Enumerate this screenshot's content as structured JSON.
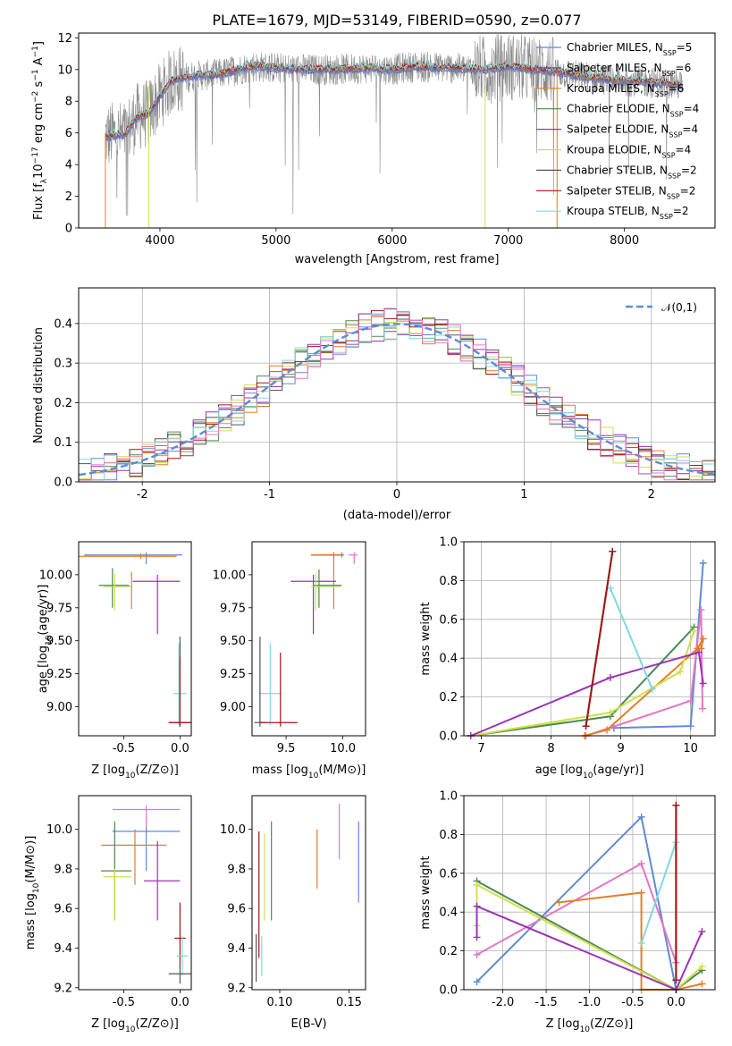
{
  "figure": {
    "title": "PLATE=1679, MJD=53149, FIBERID=0590, z=0.077"
  },
  "series_styles": [
    {
      "name": "Chabrier MILES",
      "nssp": "5",
      "color": "#5f8ad6"
    },
    {
      "name": "Salpeter MILES",
      "nssp": "6",
      "color": "#6e4fa0"
    },
    {
      "name": "Kroupa MILES",
      "nssp": "6",
      "color": "#e67e22"
    },
    {
      "name": "Chabrier ELODIE",
      "nssp": "4",
      "color": "#4a8a52"
    },
    {
      "name": "Salpeter ELODIE",
      "nssp": "4",
      "color": "#9b32b4"
    },
    {
      "name": "Kroupa ELODIE",
      "nssp": "4",
      "color": "#cfe04a"
    },
    {
      "name": "Chabrier STELIB",
      "nssp": "2",
      "color": "#555555"
    },
    {
      "name": "Salpeter STELIB",
      "nssp": "2",
      "color": "#a31515"
    },
    {
      "name": "Kroupa STELIB",
      "nssp": "2",
      "color": "#80d8e0"
    }
  ],
  "spectrum_extra_colors": {
    "observed": "#8a8a8a",
    "pink": "#e377c2"
  },
  "chart_data": [
    {
      "id": "spectrum",
      "type": "line",
      "xlabel": "wavelength [Angstrom, rest frame]",
      "ylabel": "Flux [f_λ10^-17 erg cm^-2 s^-1 A^-1]",
      "xlim": [
        3300,
        8780
      ],
      "ylim": [
        0,
        12.3
      ],
      "xticks": [
        4000,
        5000,
        6000,
        7000,
        8000
      ],
      "yticks": [
        0,
        2,
        4,
        6,
        8,
        10,
        12
      ],
      "grid": false,
      "legend": "right",
      "continuum": {
        "x": [
          3530,
          3700,
          3800,
          3900,
          4000,
          4100,
          4300,
          4500,
          4800,
          5000,
          5200,
          5500,
          5800,
          6000,
          6200,
          6500,
          6800,
          7000,
          7200,
          7400,
          7600,
          7800,
          8000,
          8200,
          8400,
          8500
        ],
        "y": [
          5.8,
          5.9,
          7.0,
          7.2,
          8.3,
          9.3,
          9.6,
          9.7,
          10.2,
          10.1,
          10.0,
          10.0,
          10.1,
          10.0,
          10.2,
          10.1,
          10.0,
          10.2,
          10.0,
          9.9,
          9.6,
          9.4,
          9.3,
          9.2,
          9.1,
          9.0
        ]
      }
    },
    {
      "id": "residual_hist",
      "type": "histogram",
      "xlabel": "(data-model)/error",
      "ylabel": "Normed distribution",
      "xlim": [
        -2.5,
        2.5
      ],
      "ylim": [
        0,
        0.49
      ],
      "xticks": [
        -2,
        -1,
        0,
        1,
        2
      ],
      "yticks": [
        0.0,
        0.1,
        0.2,
        0.3,
        0.4
      ],
      "grid": true,
      "legend_label": "𝒩(0,1)",
      "legend": "top-right",
      "bin_width": 0.1,
      "gaussian": {
        "mean": 0,
        "sigma": 1
      }
    },
    {
      "id": "age_vs_Z",
      "type": "errorbar",
      "xlabel": "Z [log10(Z/Z⊙)]",
      "ylabel": "age  [log10(age/yr)]",
      "xlim": [
        -0.9,
        0.1
      ],
      "ylim": [
        8.78,
        10.25
      ],
      "xticks": [
        -0.5,
        0.0
      ],
      "yticks": [
        9.0,
        9.25,
        9.5,
        9.75,
        10.0
      ],
      "ytick_labels": [
        "9.00",
        "9.25",
        "9.50",
        "9.75",
        "10.00"
      ],
      "points": [
        {
          "series": 0,
          "x": -0.3,
          "xerr": [
            0.55,
            0.32
          ],
          "y": 10.15,
          "yerr": [
            0.07,
            0.02
          ]
        },
        {
          "series": 2,
          "x": -0.35,
          "xerr": [
            0.55,
            0.32
          ],
          "y": 10.14,
          "yerr": [
            0.02,
            0.02
          ]
        },
        {
          "series": 4,
          "x": -0.2,
          "xerr": [
            0.22,
            0.2
          ],
          "y": 9.95,
          "yerr": [
            0.4,
            0.05
          ]
        },
        {
          "series": 3,
          "x": -0.6,
          "xerr": [
            0.12,
            0.15
          ],
          "y": 9.92,
          "yerr": [
            0.17,
            0.13
          ]
        },
        {
          "series": 5,
          "x": -0.58,
          "xerr": [
            0.1,
            0.15
          ],
          "y": 9.91,
          "yerr": [
            0.18,
            0.1
          ]
        },
        {
          "series": 2,
          "x": -0.43,
          "xerr": [
            0.0,
            0.0
          ],
          "y": 9.92,
          "yerr": [
            0.18,
            0.1
          ]
        },
        {
          "series": 8,
          "x": -0.01,
          "xerr": [
            0.05,
            0.07
          ],
          "y": 9.1,
          "yerr": [
            0.24,
            0.38
          ]
        },
        {
          "series": 6,
          "x": 0.0,
          "xerr": [
            0.1,
            0.1
          ],
          "y": 8.88,
          "yerr": [
            0.03,
            0.65
          ]
        },
        {
          "series": 7,
          "x": 0.0,
          "xerr": [
            0.1,
            0.1
          ],
          "y": 8.88,
          "yerr": [
            0.03,
            0.5
          ]
        }
      ]
    },
    {
      "id": "age_vs_mass",
      "type": "errorbar",
      "xlabel": "mass [log10(M/M⊙)]",
      "ylabel": "",
      "xlim": [
        9.2,
        10.2
      ],
      "ylim": [
        8.78,
        10.25
      ],
      "xticks": [
        9.5,
        10.0
      ],
      "yticks": [
        9.0,
        9.25,
        9.5,
        9.75,
        10.0
      ],
      "ytick_labels": [
        "9.00",
        "9.25",
        "9.50",
        "9.75",
        "10.00"
      ],
      "points": [
        {
          "series": 0,
          "x": 9.99,
          "xerr": [
            0.2,
            0.02
          ],
          "y": 10.15,
          "yerr": [
            0.02,
            0.02
          ]
        },
        {
          "series": 7,
          "x": 9.92,
          "xerr": [
            0.2,
            0.08
          ],
          "y": 10.15,
          "yerr": [
            0.02,
            0.02
          ]
        },
        {
          "series": 2,
          "x": 9.92,
          "xerr": [
            0.2,
            0.08
          ],
          "y": 10.15,
          "yerr": [
            0.41,
            0.02
          ]
        },
        {
          "series": 9,
          "x": 10.1,
          "xerr": [
            0.05,
            0.03
          ],
          "y": 10.15,
          "yerr": [
            0.07,
            0.02
          ]
        },
        {
          "series": 4,
          "x": 9.74,
          "xerr": [
            0.2,
            0.2
          ],
          "y": 9.95,
          "yerr": [
            0.4,
            0.05
          ]
        },
        {
          "series": 3,
          "x": 9.79,
          "xerr": [
            0.05,
            0.2
          ],
          "y": 9.92,
          "yerr": [
            0.17,
            0.12
          ]
        },
        {
          "series": 5,
          "x": 9.76,
          "xerr": [
            0.04,
            0.22
          ],
          "y": 9.91,
          "yerr": [
            0.18,
            0.1
          ]
        },
        {
          "series": 8,
          "x": 9.36,
          "xerr": [
            0.1,
            0.1
          ],
          "y": 9.1,
          "yerr": [
            0.24,
            0.38
          ]
        },
        {
          "series": 6,
          "x": 9.27,
          "xerr": [
            0.05,
            0.05
          ],
          "y": 8.88,
          "yerr": [
            0.03,
            0.65
          ]
        },
        {
          "series": 7,
          "x": 9.45,
          "xerr": [
            0.18,
            0.15
          ],
          "y": 8.88,
          "yerr": [
            0.03,
            0.53
          ]
        }
      ]
    },
    {
      "id": "weight_vs_age",
      "type": "line",
      "xlabel": "age  [log10(age/yr)]",
      "ylabel": "mass weight",
      "xlim": [
        6.75,
        10.35
      ],
      "ylim": [
        0,
        1.0
      ],
      "xticks": [
        7,
        8,
        9,
        10
      ],
      "yticks": [
        0.0,
        0.2,
        0.4,
        0.6,
        0.8,
        1.0
      ],
      "grid": true,
      "series": [
        {
          "series": 0,
          "x": [
            8.9,
            10.0,
            10.18
          ],
          "y": [
            0.04,
            0.05,
            0.89
          ]
        },
        {
          "series": 9,
          "x": [
            8.5,
            10.0,
            10.15,
            10.17
          ],
          "y": [
            0.0,
            0.18,
            0.65,
            0.14
          ]
        },
        {
          "series": 2,
          "x": [
            8.48,
            8.8,
            10.1,
            10.18,
            10.15
          ],
          "y": [
            0.0,
            0.03,
            0.45,
            0.5,
            0.45
          ]
        },
        {
          "series": 3,
          "x": [
            6.85,
            8.85,
            10.05
          ],
          "y": [
            0.0,
            0.1,
            0.56
          ]
        },
        {
          "series": 5,
          "x": [
            6.85,
            8.85,
            9.85,
            10.05
          ],
          "y": [
            0.0,
            0.12,
            0.33,
            0.54
          ]
        },
        {
          "series": 4,
          "x": [
            6.85,
            8.85,
            10.12,
            10.18
          ],
          "y": [
            0.0,
            0.3,
            0.43,
            0.27
          ]
        },
        {
          "series": 8,
          "x": [
            8.85,
            9.45
          ],
          "y": [
            0.76,
            0.24
          ]
        },
        {
          "series": 6,
          "x": [
            8.5,
            8.88
          ],
          "y": [
            0.05,
            0.95
          ]
        },
        {
          "series": 7,
          "x": [
            8.5,
            8.88
          ],
          "y": [
            0.05,
            0.95
          ]
        }
      ]
    },
    {
      "id": "mass_vs_Z",
      "type": "errorbar",
      "xlabel": "Z [log10(Z/Z⊙)]",
      "ylabel": "mass [log10(M/M⊙)]",
      "xlim": [
        -0.9,
        0.1
      ],
      "ylim": [
        9.19,
        10.17
      ],
      "xticks": [
        -0.5,
        0.0
      ],
      "yticks": [
        9.2,
        9.4,
        9.6,
        9.8,
        10.0
      ],
      "points": [
        {
          "series": 9,
          "x": -0.3,
          "xerr": [
            0.3,
            0.3
          ],
          "y": 10.1,
          "yerr": [
            0.1,
            0.02
          ]
        },
        {
          "series": 0,
          "x": -0.3,
          "xerr": [
            0.3,
            0.3
          ],
          "y": 9.99,
          "yerr": [
            0.2,
            0.02
          ]
        },
        {
          "series": 2,
          "x": -0.4,
          "xerr": [
            0.3,
            0.28
          ],
          "y": 9.92,
          "yerr": [
            0.2,
            0.08
          ]
        },
        {
          "series": 3,
          "x": -0.58,
          "xerr": [
            0.12,
            0.15
          ],
          "y": 9.79,
          "yerr": [
            0.25,
            0.25
          ]
        },
        {
          "series": 5,
          "x": -0.58,
          "xerr": [
            0.1,
            0.15
          ],
          "y": 9.76,
          "yerr": [
            0.22,
            0.04
          ]
        },
        {
          "series": 4,
          "x": -0.2,
          "xerr": [
            0.12,
            0.2
          ],
          "y": 9.74,
          "yerr": [
            0.2,
            0.2
          ]
        },
        {
          "series": 7,
          "x": 0.0,
          "xerr": [
            0.05,
            0.05
          ],
          "y": 9.45,
          "yerr": [
            0.15,
            0.18
          ]
        },
        {
          "series": 8,
          "x": 0.02,
          "xerr": [
            0.05,
            0.05
          ],
          "y": 9.36,
          "yerr": [
            0.1,
            0.1
          ]
        },
        {
          "series": 6,
          "x": 0.0,
          "xerr": [
            0.1,
            0.1
          ],
          "y": 9.27,
          "yerr": [
            0.05,
            0.05
          ]
        }
      ]
    },
    {
      "id": "mass_vs_EBV",
      "type": "errorbar",
      "xlabel": "E(B-V)",
      "ylabel": "",
      "xlim": [
        0.08,
        0.162
      ],
      "ylim": [
        9.19,
        10.17
      ],
      "xticks": [
        0.1,
        0.15
      ],
      "xtick_labels": [
        "0.10",
        "0.15"
      ],
      "yticks": [
        9.2,
        9.4,
        9.6,
        9.8,
        10.0
      ],
      "points": [
        {
          "series": 6,
          "x": 0.083,
          "y": 9.36,
          "yerr": [
            0.13,
            0.11
          ]
        },
        {
          "series": 7,
          "x": 0.085,
          "y": 9.74,
          "yerr": [
            0.39,
            0.25
          ]
        },
        {
          "series": 8,
          "x": 0.087,
          "y": 9.36,
          "yerr": [
            0.1,
            0.1
          ]
        },
        {
          "series": 5,
          "x": 0.089,
          "y": 9.76,
          "yerr": [
            0.22,
            0.22
          ]
        },
        {
          "series": 3,
          "x": 0.094,
          "y": 9.79,
          "yerr": [
            0.25,
            0.25
          ]
        },
        {
          "series": 2,
          "x": 0.127,
          "y": 9.92,
          "yerr": [
            0.22,
            0.08
          ]
        },
        {
          "series": 9,
          "x": 0.143,
          "y": 9.99,
          "yerr": [
            0.14,
            0.14
          ]
        },
        {
          "series": 0,
          "x": 0.157,
          "y": 9.83,
          "yerr": [
            0.2,
            0.21
          ]
        }
      ]
    },
    {
      "id": "weight_vs_Z",
      "type": "line",
      "xlabel": "Z [log10(Z/Z⊙)]",
      "ylabel": "mass weight",
      "xlim": [
        -2.45,
        0.45
      ],
      "ylim": [
        0,
        1.0
      ],
      "xticks": [
        -2.0,
        -1.5,
        -1.0,
        -0.5,
        0.0
      ],
      "yticks": [
        0.0,
        0.2,
        0.4,
        0.6,
        0.8,
        1.0
      ],
      "grid": true,
      "series": [
        {
          "series": 0,
          "x": [
            -2.3,
            -0.4,
            0.0
          ],
          "y": [
            0.04,
            0.89,
            0.0
          ]
        },
        {
          "series": 9,
          "x": [
            -2.3,
            -0.4,
            0.0
          ],
          "y": [
            0.18,
            0.65,
            0.14
          ]
        },
        {
          "series": 2,
          "x": [
            -1.35,
            -0.4,
            -0.4,
            0.0,
            0.3
          ],
          "y": [
            0.45,
            0.5,
            0.0,
            0.0,
            0.03
          ]
        },
        {
          "series": 3,
          "x": [
            -2.3,
            0.0,
            0.3
          ],
          "y": [
            0.56,
            0.0,
            0.1
          ]
        },
        {
          "series": 5,
          "x": [
            -2.3,
            -2.3,
            0.0,
            0.3
          ],
          "y": [
            0.33,
            0.54,
            0.0,
            0.12
          ]
        },
        {
          "series": 4,
          "x": [
            -2.3,
            -2.3,
            0.0,
            0.3
          ],
          "y": [
            0.27,
            0.43,
            0.0,
            0.3
          ]
        },
        {
          "series": 8,
          "x": [
            -0.4,
            0.0
          ],
          "y": [
            0.24,
            0.76
          ]
        },
        {
          "series": 6,
          "x": [
            0.0,
            0.0
          ],
          "y": [
            0.05,
            0.95
          ]
        },
        {
          "series": 7,
          "x": [
            0.0,
            0.0
          ],
          "y": [
            0.05,
            0.95
          ]
        }
      ]
    }
  ]
}
